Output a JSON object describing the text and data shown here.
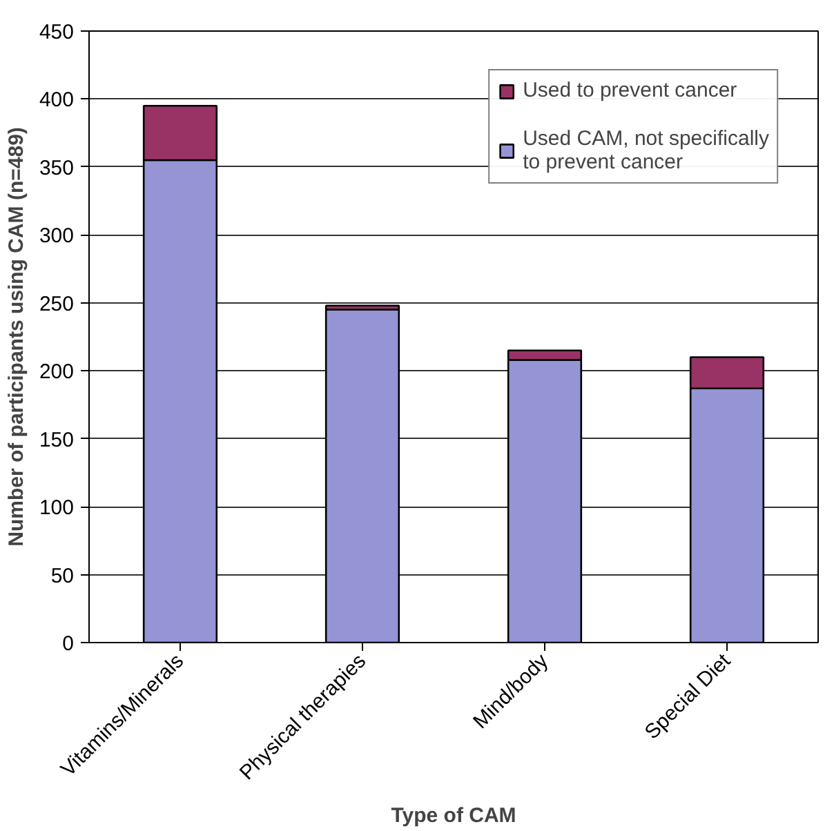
{
  "chart_data": {
    "type": "bar",
    "stacked": true,
    "xlabel": "Type of CAM",
    "ylabel": "Number of participants using CAM (n=489)",
    "categories": [
      "Vitamins/Minerals",
      "Physical therapies",
      "Mind/body",
      "Special Diet"
    ],
    "series": [
      {
        "name": "Used CAM, not specifically to prevent cancer",
        "color": "#9595d5",
        "values": [
          355,
          245,
          208,
          187
        ]
      },
      {
        "name": "Used to prevent cancer",
        "color": "#993366",
        "values": [
          40,
          3,
          7,
          23
        ]
      }
    ],
    "ylim": [
      0,
      450
    ],
    "yticks": [
      0,
      50,
      100,
      150,
      200,
      250,
      300,
      350,
      400,
      450
    ],
    "grid": "y",
    "legend": "top right"
  }
}
